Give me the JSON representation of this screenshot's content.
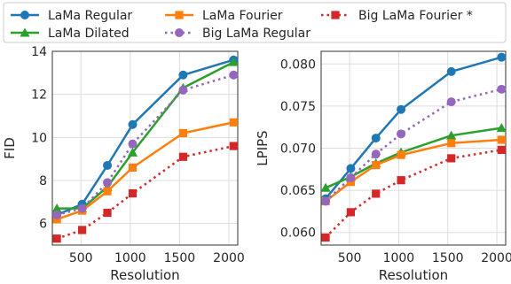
{
  "legend": {
    "items": [
      {
        "label": "LaMa Regular",
        "color": "#1f77b4",
        "marker": "circle",
        "dash": "solid"
      },
      {
        "label": "LaMa Fourier",
        "color": "#ff7f0e",
        "marker": "square",
        "dash": "solid"
      },
      {
        "label": "Big LaMa Fourier *",
        "color": "#d62728",
        "marker": "square",
        "dash": "dotted"
      },
      {
        "label": "LaMa Dilated",
        "color": "#2ca02c",
        "marker": "triangle",
        "dash": "solid"
      },
      {
        "label": "Big LaMa Regular",
        "color": "#9467bd",
        "marker": "circle",
        "dash": "dotted"
      }
    ]
  },
  "chart_data": [
    {
      "type": "line",
      "xlabel": "Resolution",
      "ylabel": "FID",
      "x": [
        256,
        512,
        768,
        1024,
        1536,
        2048
      ],
      "xlim": [
        210,
        2090
      ],
      "ylim": [
        5.0,
        14.0
      ],
      "xticks": [
        500,
        1000,
        1500,
        2000
      ],
      "yticks": [
        6,
        8,
        10,
        12,
        14
      ],
      "ytick_labels": [
        "6",
        "8",
        "10",
        "12",
        "14"
      ],
      "grid": true,
      "series": [
        {
          "name": "LaMa Regular",
          "values": [
            6.4,
            6.9,
            8.7,
            10.6,
            12.9,
            13.6
          ]
        },
        {
          "name": "LaMa Dilated",
          "values": [
            6.7,
            6.7,
            7.7,
            9.3,
            12.3,
            13.5
          ]
        },
        {
          "name": "LaMa Fourier",
          "values": [
            6.2,
            6.6,
            7.5,
            8.6,
            10.2,
            10.7
          ]
        },
        {
          "name": "Big LaMa Regular",
          "values": [
            6.4,
            6.7,
            7.9,
            9.7,
            12.2,
            12.9
          ]
        },
        {
          "name": "Big LaMa Fourier *",
          "values": [
            5.3,
            5.7,
            6.5,
            7.4,
            9.1,
            9.6
          ]
        }
      ]
    },
    {
      "type": "line",
      "xlabel": "Resolution",
      "ylabel": "LPIPS",
      "x": [
        256,
        512,
        768,
        1024,
        1536,
        2048
      ],
      "xlim": [
        210,
        2090
      ],
      "ylim": [
        0.0585,
        0.0815
      ],
      "xticks": [
        500,
        1000,
        1500,
        2000
      ],
      "yticks": [
        0.06,
        0.065,
        0.07,
        0.075,
        0.08
      ],
      "ytick_labels": [
        "0.060",
        "0.065",
        "0.070",
        "0.075",
        "0.080"
      ],
      "grid": true,
      "series": [
        {
          "name": "LaMa Regular",
          "values": [
            0.064,
            0.0676,
            0.0712,
            0.0746,
            0.0791,
            0.0808
          ]
        },
        {
          "name": "LaMa Dilated",
          "values": [
            0.0653,
            0.0666,
            0.0682,
            0.0695,
            0.0715,
            0.0724
          ]
        },
        {
          "name": "LaMa Fourier",
          "values": [
            0.0637,
            0.066,
            0.068,
            0.0692,
            0.0706,
            0.071
          ]
        },
        {
          "name": "Big LaMa Regular",
          "values": [
            0.0637,
            0.0665,
            0.0693,
            0.0717,
            0.0755,
            0.077
          ]
        },
        {
          "name": "Big LaMa Fourier *",
          "values": [
            0.0594,
            0.0624,
            0.0646,
            0.0662,
            0.0688,
            0.0698
          ]
        }
      ]
    }
  ]
}
